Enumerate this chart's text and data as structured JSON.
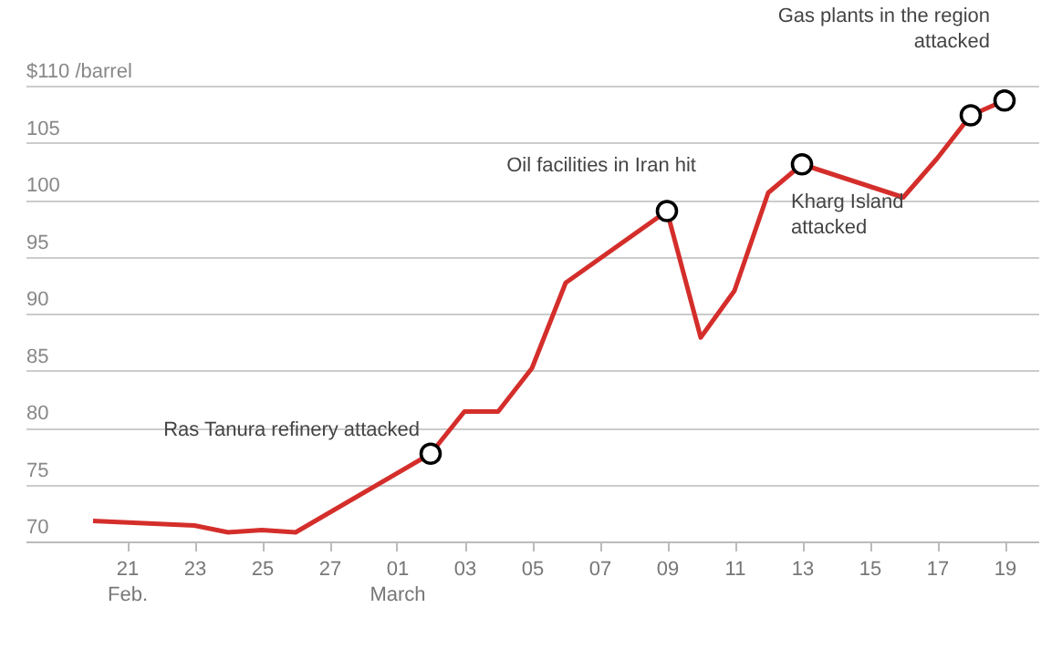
{
  "chart_data": {
    "type": "line",
    "x": [
      "--02-20",
      "--02-23",
      "--02-24",
      "--02-25",
      "--02-26",
      "--03-02",
      "--03-03",
      "--03-04",
      "--03-05",
      "--03-06",
      "--03-09",
      "--03-10",
      "--03-11",
      "--03-12",
      "--03-13",
      "--03-16",
      "--03-17",
      "--03-18",
      "--03-19"
    ],
    "series": [
      {
        "type": "line",
        "color": "#d42e2b",
        "values": [
          71.8,
          71.4,
          70.8,
          71.0,
          70.8,
          77.7,
          81.4,
          81.4,
          85.2,
          92.7,
          99.0,
          87.9,
          92.0,
          100.6,
          103.1,
          100.2,
          103.6,
          107.4,
          108.7
        ]
      },
      {
        "type": "scatter",
        "color": "#000000",
        "marker": "circle",
        "x": [
          "--03-02",
          "--03-09",
          "--03-13",
          "--03-18",
          "--03-19"
        ],
        "values": [
          77.7,
          99.0,
          103.1,
          107.4,
          108.7
        ]
      }
    ],
    "xlim": [
      "--02-18",
      "--03-20"
    ],
    "xticks": [
      {
        "value": "--02-21",
        "label": "21\nFeb."
      },
      {
        "value": "--02-23",
        "label": "23"
      },
      {
        "value": "--02-25",
        "label": "25"
      },
      {
        "value": "--02-27",
        "label": "27"
      },
      {
        "value": "--03-01",
        "label": "01\nMarch"
      },
      {
        "value": "--03-03",
        "label": "03"
      },
      {
        "value": "--03-05",
        "label": "05"
      },
      {
        "value": "--03-07",
        "label": "07"
      },
      {
        "value": "--03-09",
        "label": "09"
      },
      {
        "value": "--03-11",
        "label": "11"
      },
      {
        "value": "--03-13",
        "label": "13"
      },
      {
        "value": "--03-15",
        "label": "15"
      },
      {
        "value": "--03-17",
        "label": "17"
      },
      {
        "value": "--03-19",
        "label": "19"
      }
    ],
    "ylim": [
      70,
      110
    ],
    "yticks": [
      70,
      75,
      80,
      85,
      90,
      95,
      100,
      105,
      {
        "value": 110,
        "label": "$110 /barrel"
      }
    ],
    "grid": "y",
    "annotations": [
      {
        "text": "Ras Tanura refinery attacked",
        "x": "--03-02",
        "y": 77.7
      },
      {
        "text": "Oil facilities in Iran hit",
        "x": "--03-09",
        "y": 99.0
      },
      {
        "text": "Kharg Island\nattacked",
        "x": "--03-13",
        "y": 103.1
      },
      {
        "text": "Gas plants in the region\nattacked",
        "x": "--03-19",
        "y": 108.7
      }
    ]
  }
}
